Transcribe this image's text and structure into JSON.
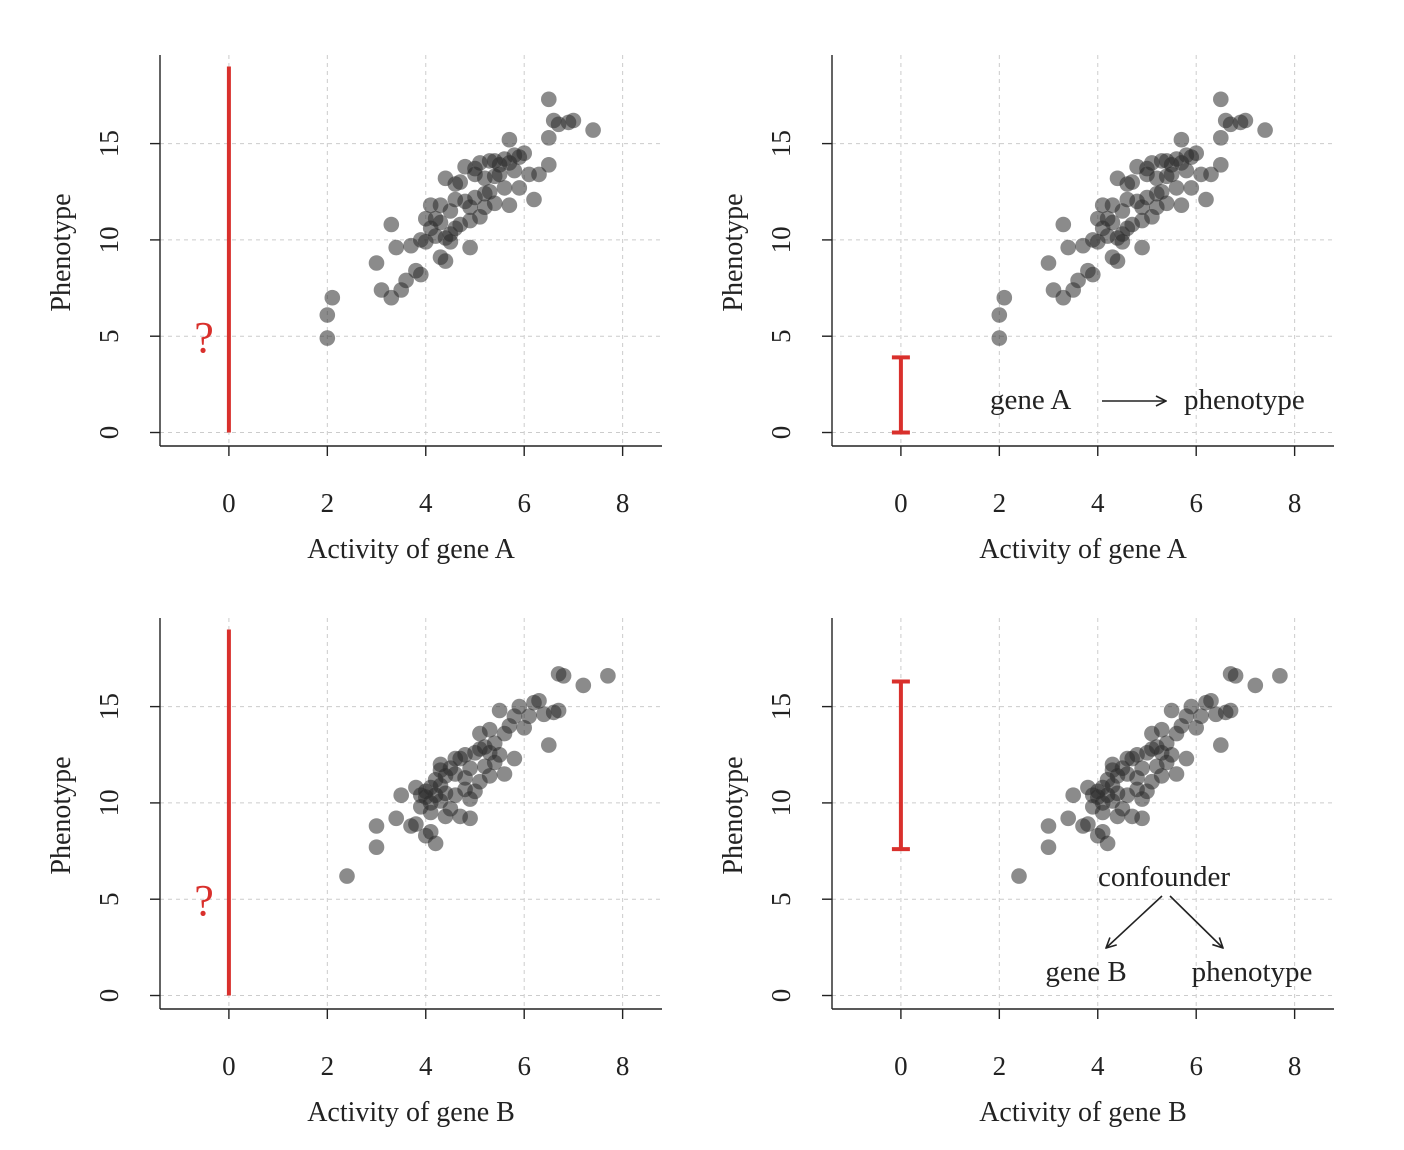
{
  "figure": {
    "colors": {
      "points": "#2b2b2b",
      "interval": "#d9302c",
      "axis": "#222222",
      "grid": "#cccccc"
    }
  },
  "chart_data": [
    {
      "type": "scatter",
      "panel": "top-left",
      "xlabel": "Activity of gene A",
      "ylabel": "Phenotype",
      "xticks": [
        "0",
        "2",
        "4",
        "6",
        "8"
      ],
      "yticks": [
        "0",
        "5",
        "10",
        "15"
      ],
      "xlim": [
        -1.4,
        8.8
      ],
      "ylim": [
        -0.7,
        19.6
      ],
      "grid": true,
      "series": [
        {
          "x": [
            2.0,
            2.0,
            2.1,
            3.0,
            3.1,
            3.3,
            3.3,
            3.4,
            3.5,
            3.6,
            3.8,
            3.9,
            3.9,
            4.0,
            4.0,
            4.1,
            4.2,
            4.2,
            4.3,
            4.3,
            4.4,
            4.4,
            4.4,
            4.5,
            4.5,
            4.6,
            4.6,
            4.7,
            4.7,
            4.8,
            4.8,
            4.9,
            4.9,
            5.0,
            5.0,
            5.0,
            5.1,
            5.1,
            5.2,
            5.2,
            5.3,
            5.3,
            5.4,
            5.4,
            5.5,
            5.5,
            5.6,
            5.6,
            5.7,
            5.7,
            5.8,
            5.8,
            5.9,
            5.9,
            6.0,
            6.1,
            6.2,
            6.3,
            6.5,
            6.5,
            6.5,
            6.6,
            6.7,
            6.9,
            7.0,
            7.4,
            4.5,
            4.9,
            5.2,
            5.7,
            4.1,
            3.7,
            4.3,
            4.6,
            5.4
          ],
          "y": [
            4.9,
            6.1,
            7.0,
            8.8,
            7.4,
            7.0,
            10.8,
            9.6,
            7.4,
            7.9,
            8.4,
            8.2,
            10.0,
            9.9,
            11.1,
            11.8,
            10.2,
            11.1,
            9.1,
            11.8,
            8.9,
            10.1,
            13.2,
            9.9,
            11.5,
            10.6,
            12.1,
            10.8,
            13.0,
            12.0,
            13.8,
            9.6,
            11.7,
            12.2,
            13.4,
            13.7,
            11.2,
            14.0,
            11.7,
            13.2,
            14.1,
            12.5,
            13.3,
            11.9,
            13.9,
            13.4,
            12.7,
            14.2,
            15.2,
            11.8,
            13.6,
            14.4,
            12.7,
            14.3,
            14.5,
            13.4,
            12.1,
            13.4,
            17.3,
            15.3,
            13.9,
            16.2,
            16.0,
            16.1,
            16.2,
            15.7,
            10.3,
            11.0,
            12.4,
            14.0,
            10.6,
            9.7,
            10.9,
            12.9,
            14.1
          ]
        }
      ],
      "interval": {
        "x": 0,
        "from": 0,
        "to": 19.0,
        "caps": false
      },
      "annotation": "?"
    },
    {
      "type": "scatter",
      "panel": "top-right",
      "xlabel": "Activity of gene A",
      "ylabel": "Phenotype",
      "xticks": [
        "0",
        "2",
        "4",
        "6",
        "8"
      ],
      "yticks": [
        "0",
        "5",
        "10",
        "15"
      ],
      "xlim": [
        -1.4,
        8.8
      ],
      "ylim": [
        -0.7,
        19.6
      ],
      "grid": true,
      "series": [
        {
          "x": [
            2.0,
            2.0,
            2.1,
            3.0,
            3.1,
            3.3,
            3.3,
            3.4,
            3.5,
            3.6,
            3.8,
            3.9,
            3.9,
            4.0,
            4.0,
            4.1,
            4.2,
            4.2,
            4.3,
            4.3,
            4.4,
            4.4,
            4.4,
            4.5,
            4.5,
            4.6,
            4.6,
            4.7,
            4.7,
            4.8,
            4.8,
            4.9,
            4.9,
            5.0,
            5.0,
            5.0,
            5.1,
            5.1,
            5.2,
            5.2,
            5.3,
            5.3,
            5.4,
            5.4,
            5.5,
            5.5,
            5.6,
            5.6,
            5.7,
            5.7,
            5.8,
            5.8,
            5.9,
            5.9,
            6.0,
            6.1,
            6.2,
            6.3,
            6.5,
            6.5,
            6.5,
            6.6,
            6.7,
            6.9,
            7.0,
            7.4,
            4.5,
            4.9,
            5.2,
            5.7,
            4.1,
            3.7,
            4.3,
            4.6,
            5.4
          ],
          "y": [
            4.9,
            6.1,
            7.0,
            8.8,
            7.4,
            7.0,
            10.8,
            9.6,
            7.4,
            7.9,
            8.4,
            8.2,
            10.0,
            9.9,
            11.1,
            11.8,
            10.2,
            11.1,
            9.1,
            11.8,
            8.9,
            10.1,
            13.2,
            9.9,
            11.5,
            10.6,
            12.1,
            10.8,
            13.0,
            12.0,
            13.8,
            9.6,
            11.7,
            12.2,
            13.4,
            13.7,
            11.2,
            14.0,
            11.7,
            13.2,
            14.1,
            12.5,
            13.3,
            11.9,
            13.9,
            13.4,
            12.7,
            14.2,
            15.2,
            11.8,
            13.6,
            14.4,
            12.7,
            14.3,
            14.5,
            13.4,
            12.1,
            13.4,
            17.3,
            15.3,
            13.9,
            16.2,
            16.0,
            16.1,
            16.2,
            15.7,
            10.3,
            11.0,
            12.4,
            14.0,
            10.6,
            9.7,
            10.9,
            12.9,
            14.1
          ]
        }
      ],
      "interval": {
        "x": 0,
        "from": 0,
        "to": 3.9,
        "caps": true
      },
      "annotation_left": "gene A",
      "annotation_right": "phenotype"
    },
    {
      "type": "scatter",
      "panel": "bottom-left",
      "xlabel": "Activity of gene B",
      "ylabel": "Phenotype",
      "xticks": [
        "0",
        "2",
        "4",
        "6",
        "8"
      ],
      "yticks": [
        "0",
        "5",
        "10",
        "15"
      ],
      "xlim": [
        -1.4,
        8.8
      ],
      "ylim": [
        -0.7,
        19.6
      ],
      "grid": true,
      "series": [
        {
          "x": [
            2.4,
            3.0,
            3.0,
            3.4,
            3.5,
            3.7,
            3.8,
            3.8,
            3.9,
            3.9,
            4.0,
            4.0,
            4.0,
            4.1,
            4.1,
            4.1,
            4.2,
            4.2,
            4.2,
            4.3,
            4.3,
            4.3,
            4.4,
            4.4,
            4.4,
            4.5,
            4.5,
            4.6,
            4.6,
            4.7,
            4.7,
            4.8,
            4.8,
            4.8,
            4.9,
            4.9,
            5.0,
            5.0,
            5.1,
            5.1,
            5.1,
            5.2,
            5.2,
            5.3,
            5.3,
            5.3,
            5.4,
            5.4,
            5.5,
            5.5,
            5.6,
            5.7,
            5.8,
            5.8,
            5.9,
            6.0,
            6.1,
            6.2,
            6.3,
            6.4,
            6.5,
            6.6,
            6.7,
            6.7,
            6.8,
            7.2,
            7.7,
            4.6,
            4.9,
            5.6,
            4.1,
            4.3
          ],
          "y": [
            6.2,
            8.8,
            7.7,
            9.2,
            10.4,
            8.8,
            8.9,
            10.8,
            9.8,
            10.4,
            8.3,
            10.3,
            10.6,
            9.5,
            10.0,
            8.5,
            10.4,
            11.2,
            7.9,
            10.1,
            10.9,
            12.0,
            9.3,
            10.5,
            11.4,
            9.7,
            11.8,
            10.4,
            11.5,
            9.3,
            12.3,
            10.7,
            11.3,
            12.5,
            9.2,
            11.8,
            10.6,
            12.6,
            11.1,
            12.8,
            13.6,
            11.9,
            12.9,
            11.4,
            12.6,
            13.8,
            12.1,
            13.1,
            12.5,
            14.8,
            13.6,
            14.0,
            12.3,
            14.5,
            15.0,
            13.9,
            14.5,
            15.2,
            15.3,
            14.6,
            13.0,
            14.7,
            14.8,
            16.7,
            16.6,
            16.1,
            16.6,
            12.3,
            10.2,
            11.5,
            10.8,
            11.7
          ]
        }
      ],
      "interval": {
        "x": 0,
        "from": 0,
        "to": 19.0,
        "caps": false
      },
      "annotation": "?"
    },
    {
      "type": "scatter",
      "panel": "bottom-right",
      "xlabel": "Activity of gene B",
      "ylabel": "Phenotype",
      "xticks": [
        "0",
        "2",
        "4",
        "6",
        "8"
      ],
      "yticks": [
        "0",
        "5",
        "10",
        "15"
      ],
      "xlim": [
        -1.4,
        8.8
      ],
      "ylim": [
        -0.7,
        19.6
      ],
      "grid": true,
      "series": [
        {
          "x": [
            2.4,
            3.0,
            3.0,
            3.4,
            3.5,
            3.7,
            3.8,
            3.8,
            3.9,
            3.9,
            4.0,
            4.0,
            4.0,
            4.1,
            4.1,
            4.1,
            4.2,
            4.2,
            4.2,
            4.3,
            4.3,
            4.3,
            4.4,
            4.4,
            4.4,
            4.5,
            4.5,
            4.6,
            4.6,
            4.7,
            4.7,
            4.8,
            4.8,
            4.8,
            4.9,
            4.9,
            5.0,
            5.0,
            5.1,
            5.1,
            5.1,
            5.2,
            5.2,
            5.3,
            5.3,
            5.3,
            5.4,
            5.4,
            5.5,
            5.5,
            5.6,
            5.7,
            5.8,
            5.8,
            5.9,
            6.0,
            6.1,
            6.2,
            6.3,
            6.4,
            6.5,
            6.6,
            6.7,
            6.7,
            6.8,
            7.2,
            7.7,
            4.6,
            4.9,
            5.6,
            4.1,
            4.3
          ],
          "y": [
            6.2,
            8.8,
            7.7,
            9.2,
            10.4,
            8.8,
            8.9,
            10.8,
            9.8,
            10.4,
            8.3,
            10.3,
            10.6,
            9.5,
            10.0,
            8.5,
            10.4,
            11.2,
            7.9,
            10.1,
            10.9,
            12.0,
            9.3,
            10.5,
            11.4,
            9.7,
            11.8,
            10.4,
            11.5,
            9.3,
            12.3,
            10.7,
            11.3,
            12.5,
            9.2,
            11.8,
            10.6,
            12.6,
            11.1,
            12.8,
            13.6,
            11.9,
            12.9,
            11.4,
            12.6,
            13.8,
            12.1,
            13.1,
            12.5,
            14.8,
            13.6,
            14.0,
            12.3,
            14.5,
            15.0,
            13.9,
            14.5,
            15.2,
            15.3,
            14.6,
            13.0,
            14.7,
            14.8,
            16.7,
            16.6,
            16.1,
            16.6,
            12.3,
            10.2,
            11.5,
            10.8,
            11.7
          ]
        }
      ],
      "interval": {
        "x": 0,
        "from": 7.6,
        "to": 16.3,
        "caps": true
      },
      "annotation_top": "confounder",
      "annotation_left": "gene B",
      "annotation_right": "phenotype"
    }
  ]
}
